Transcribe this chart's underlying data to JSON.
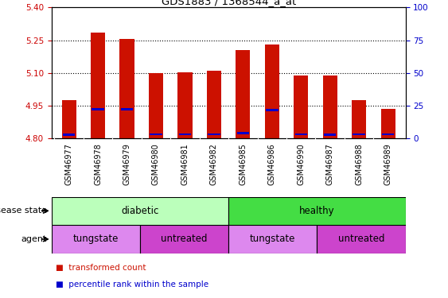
{
  "title": "GDS1883 / 1368544_a_at",
  "samples": [
    "GSM46977",
    "GSM46978",
    "GSM46979",
    "GSM46980",
    "GSM46981",
    "GSM46982",
    "GSM46985",
    "GSM46986",
    "GSM46990",
    "GSM46987",
    "GSM46988",
    "GSM46989"
  ],
  "bar_bottom": 4.8,
  "transformed_count": [
    4.975,
    5.285,
    5.255,
    5.1,
    5.105,
    5.11,
    5.205,
    5.23,
    5.09,
    5.09,
    4.975,
    4.935
  ],
  "percentile_rank": [
    4.818,
    4.935,
    4.933,
    4.82,
    4.82,
    4.82,
    4.825,
    4.93,
    4.82,
    4.818,
    4.82,
    4.82
  ],
  "ylim_left": [
    4.8,
    5.4
  ],
  "yticks_left": [
    4.8,
    4.95,
    5.1,
    5.25,
    5.4
  ],
  "yticks_right": [
    0,
    25,
    50,
    75,
    100
  ],
  "bar_color": "#cc1100",
  "percentile_color": "#0000cc",
  "disease_state_groups": [
    {
      "label": "diabetic",
      "start": 0,
      "end": 6,
      "color": "#bbffbb"
    },
    {
      "label": "healthy",
      "start": 6,
      "end": 12,
      "color": "#44dd44"
    }
  ],
  "agent_groups": [
    {
      "label": "tungstate",
      "start": 0,
      "end": 3,
      "color": "#dd88ee"
    },
    {
      "label": "untreated",
      "start": 3,
      "end": 6,
      "color": "#cc44cc"
    },
    {
      "label": "tungstate",
      "start": 6,
      "end": 9,
      "color": "#dd88ee"
    },
    {
      "label": "untreated",
      "start": 9,
      "end": 12,
      "color": "#cc44cc"
    }
  ],
  "legend_items": [
    {
      "label": "transformed count",
      "color": "#cc1100"
    },
    {
      "label": "percentile rank within the sample",
      "color": "#0000cc"
    }
  ],
  "disease_label": "disease state",
  "agent_label": "agent",
  "bar_width": 0.5,
  "background_color": "#ffffff",
  "left_axis_color": "#cc0000",
  "right_axis_color": "#0000cc",
  "xtick_bg_color": "#cccccc",
  "dotted_lines": [
    4.95,
    5.1,
    5.25
  ]
}
